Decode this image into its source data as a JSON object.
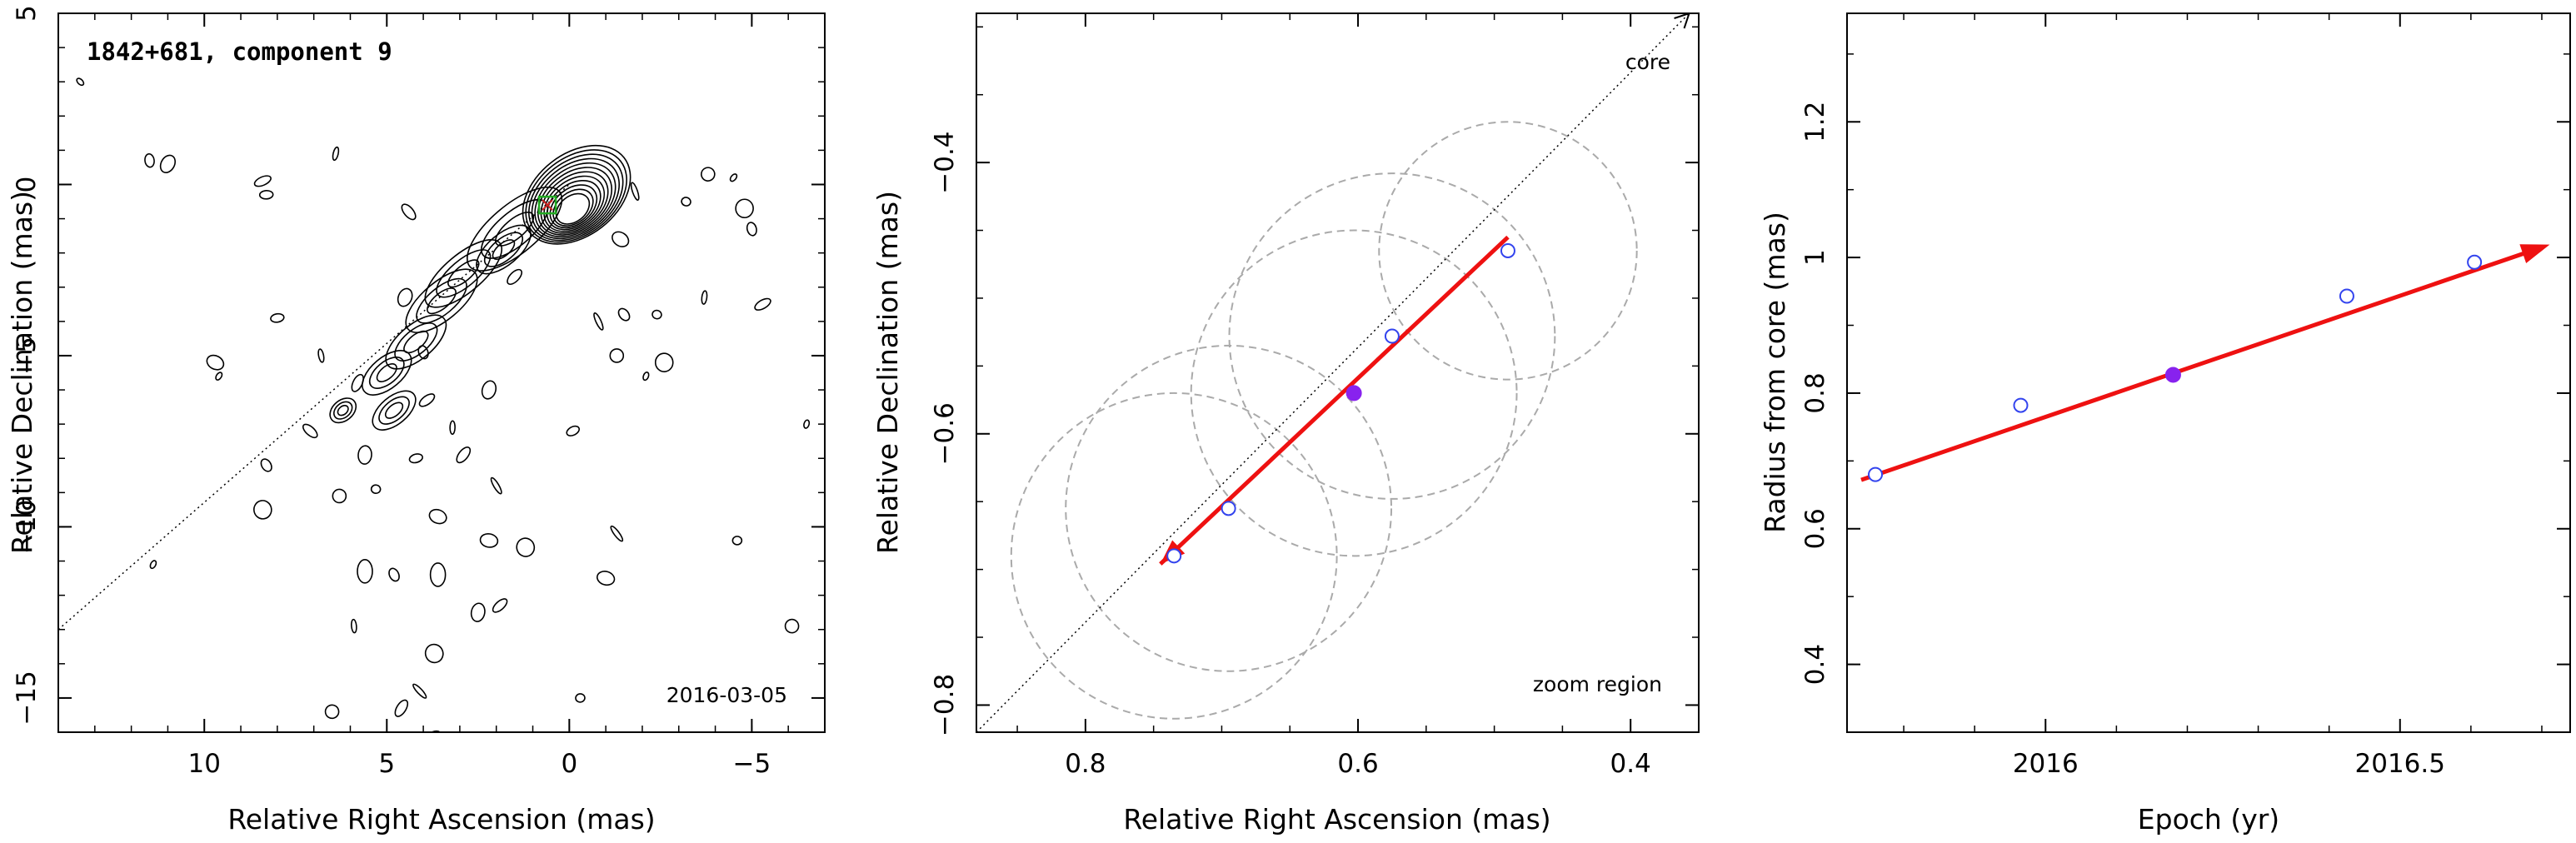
{
  "chart_data": [
    {
      "type": "contour",
      "title": "1842+681, component 9",
      "date": "2016-03-05",
      "xlabel": "Relative Right Ascension (mas)",
      "ylabel": "Relative Declination (mas)",
      "xlim": [
        14,
        -7
      ],
      "ylim": [
        -16,
        5
      ],
      "xticks": [
        10,
        5,
        0,
        -5
      ],
      "xtick_labels": [
        "10",
        "5",
        "0",
        "−5"
      ],
      "yticks": [
        5,
        0,
        -5,
        -10,
        -15
      ],
      "ytick_labels": [
        "5",
        "0",
        "−5",
        "−10",
        "−15"
      ],
      "component_marker": {
        "x": 0.6,
        "y": -0.6
      },
      "jet_axis": {
        "from": [
          14,
          -13
        ],
        "to": [
          0,
          0
        ]
      },
      "contour_levels": 12
    },
    {
      "type": "scatter",
      "annotation_core": "core",
      "annotation_zoom": "zoom region",
      "xlabel": "Relative Right Ascension (mas)",
      "ylabel": "Relative Declination (mas)",
      "xlim": [
        0.88,
        0.35
      ],
      "ylim": [
        -0.82,
        -0.29
      ],
      "xticks": [
        0.8,
        0.6,
        0.4
      ],
      "xtick_labels": [
        "0.8",
        "0.6",
        "0.4"
      ],
      "yticks": [
        -0.4,
        -0.6,
        -0.8
      ],
      "ytick_labels": [
        "−0.4",
        "−0.6",
        "−0.8"
      ],
      "points_open": [
        {
          "x": 0.735,
          "y": -0.69
        },
        {
          "x": 0.695,
          "y": -0.655
        },
        {
          "x": 0.575,
          "y": -0.528
        },
        {
          "x": 0.49,
          "y": -0.465
        }
      ],
      "point_filled": {
        "x": 0.603,
        "y": -0.57
      },
      "circles": [
        {
          "x": 0.735,
          "y": -0.69,
          "r": 0.12
        },
        {
          "x": 0.695,
          "y": -0.655,
          "r": 0.12
        },
        {
          "x": 0.603,
          "y": -0.57,
          "r": 0.12
        },
        {
          "x": 0.575,
          "y": -0.528,
          "r": 0.12
        },
        {
          "x": 0.49,
          "y": -0.465,
          "r": 0.095
        }
      ],
      "vector": {
        "from": [
          0.49,
          -0.455
        ],
        "to": [
          0.745,
          -0.696
        ]
      },
      "jet_axis": {
        "from": [
          0.88,
          -0.82
        ],
        "to": [
          0.357,
          -0.29
        ]
      }
    },
    {
      "type": "scatter",
      "xlabel": "Epoch (yr)",
      "ylabel": "Radius from core (mas)",
      "xlim": [
        2015.72,
        2016.74
      ],
      "ylim": [
        0.3,
        1.36
      ],
      "xticks": [
        2016,
        2016.5
      ],
      "xtick_labels": [
        "2016",
        "2016.5"
      ],
      "yticks": [
        0.4,
        0.6,
        0.8,
        1.0,
        1.2
      ],
      "ytick_labels": [
        "0.4",
        "0.6",
        "0.8",
        "1",
        "1.2"
      ],
      "points_open": [
        {
          "x": 2015.76,
          "y": 0.68
        },
        {
          "x": 2015.965,
          "y": 0.782
        },
        {
          "x": 2016.425,
          "y": 0.943
        },
        {
          "x": 2016.605,
          "y": 0.993
        }
      ],
      "point_filled": {
        "x": 2016.18,
        "y": 0.827
      },
      "fit_line": {
        "from": [
          2015.74,
          0.672
        ],
        "to": [
          2016.7,
          1.015
        ]
      }
    }
  ]
}
